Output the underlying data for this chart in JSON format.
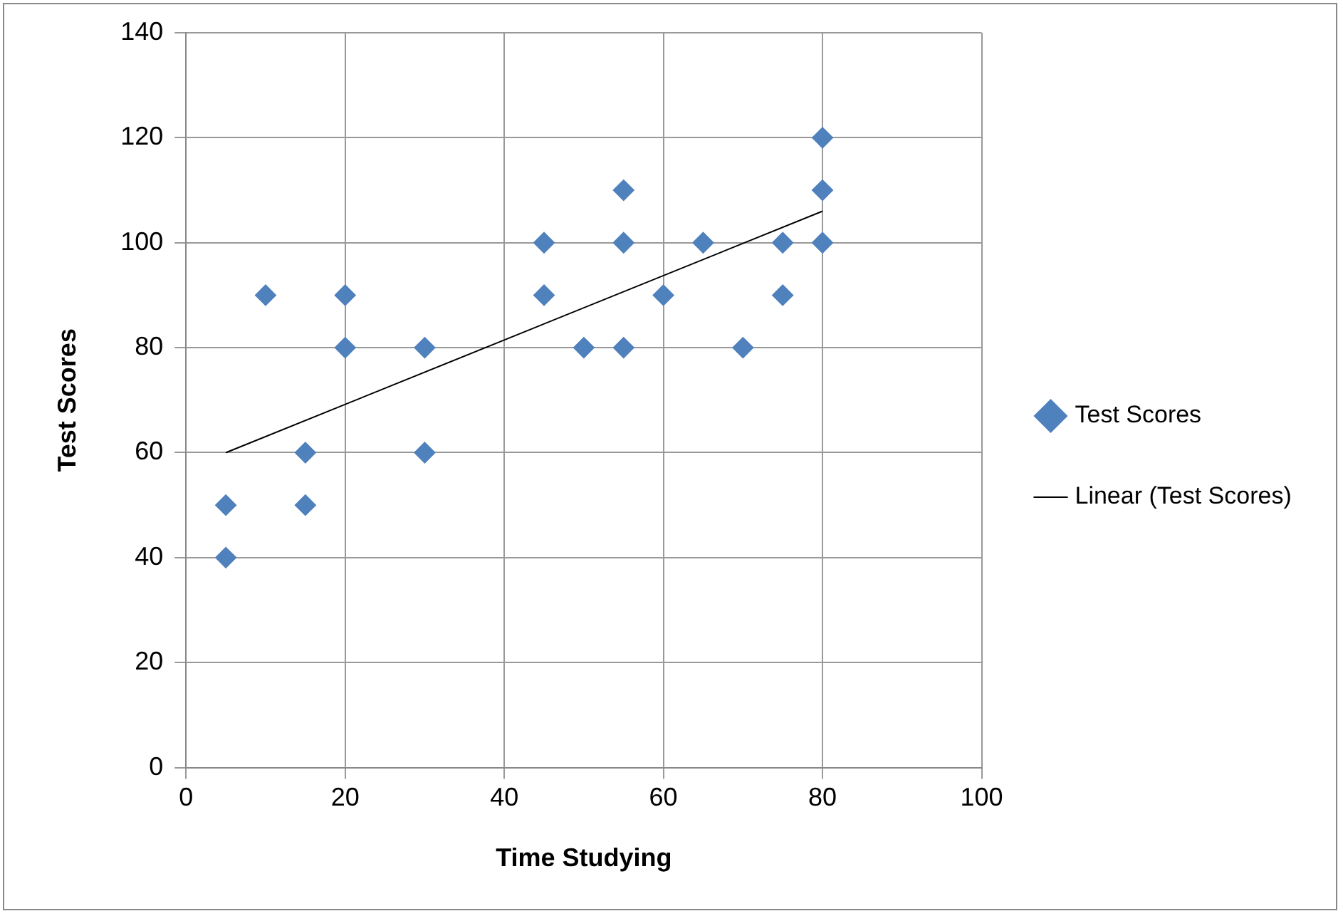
{
  "chart_data": {
    "type": "scatter",
    "xlabel": "Time Studying",
    "ylabel": "Test Scores",
    "series": [
      {
        "name": "Test Scores",
        "type": "scatter",
        "color": "#4f81bd",
        "marker": "diamond",
        "x": [
          5,
          5,
          10,
          15,
          15,
          20,
          20,
          30,
          30,
          45,
          45,
          50,
          55,
          55,
          55,
          60,
          65,
          70,
          75,
          75,
          80,
          80,
          80
        ],
        "values": [
          50,
          40,
          90,
          60,
          50,
          90,
          80,
          80,
          60,
          100,
          90,
          80,
          110,
          100,
          80,
          90,
          100,
          80,
          100,
          90,
          120,
          110,
          100
        ]
      },
      {
        "name": "Linear (Test Scores)",
        "type": "line",
        "color": "#000000",
        "marker": "none",
        "line_style": "solid",
        "x": [
          5,
          80
        ],
        "values": [
          60,
          106
        ]
      }
    ],
    "xlim": [
      0,
      100
    ],
    "xticks": [
      0,
      20,
      40,
      60,
      80,
      100
    ],
    "ylim": [
      0,
      140
    ],
    "yticks": [
      0,
      20,
      40,
      60,
      80,
      100,
      120,
      140
    ],
    "grid": true,
    "legend": "right"
  }
}
